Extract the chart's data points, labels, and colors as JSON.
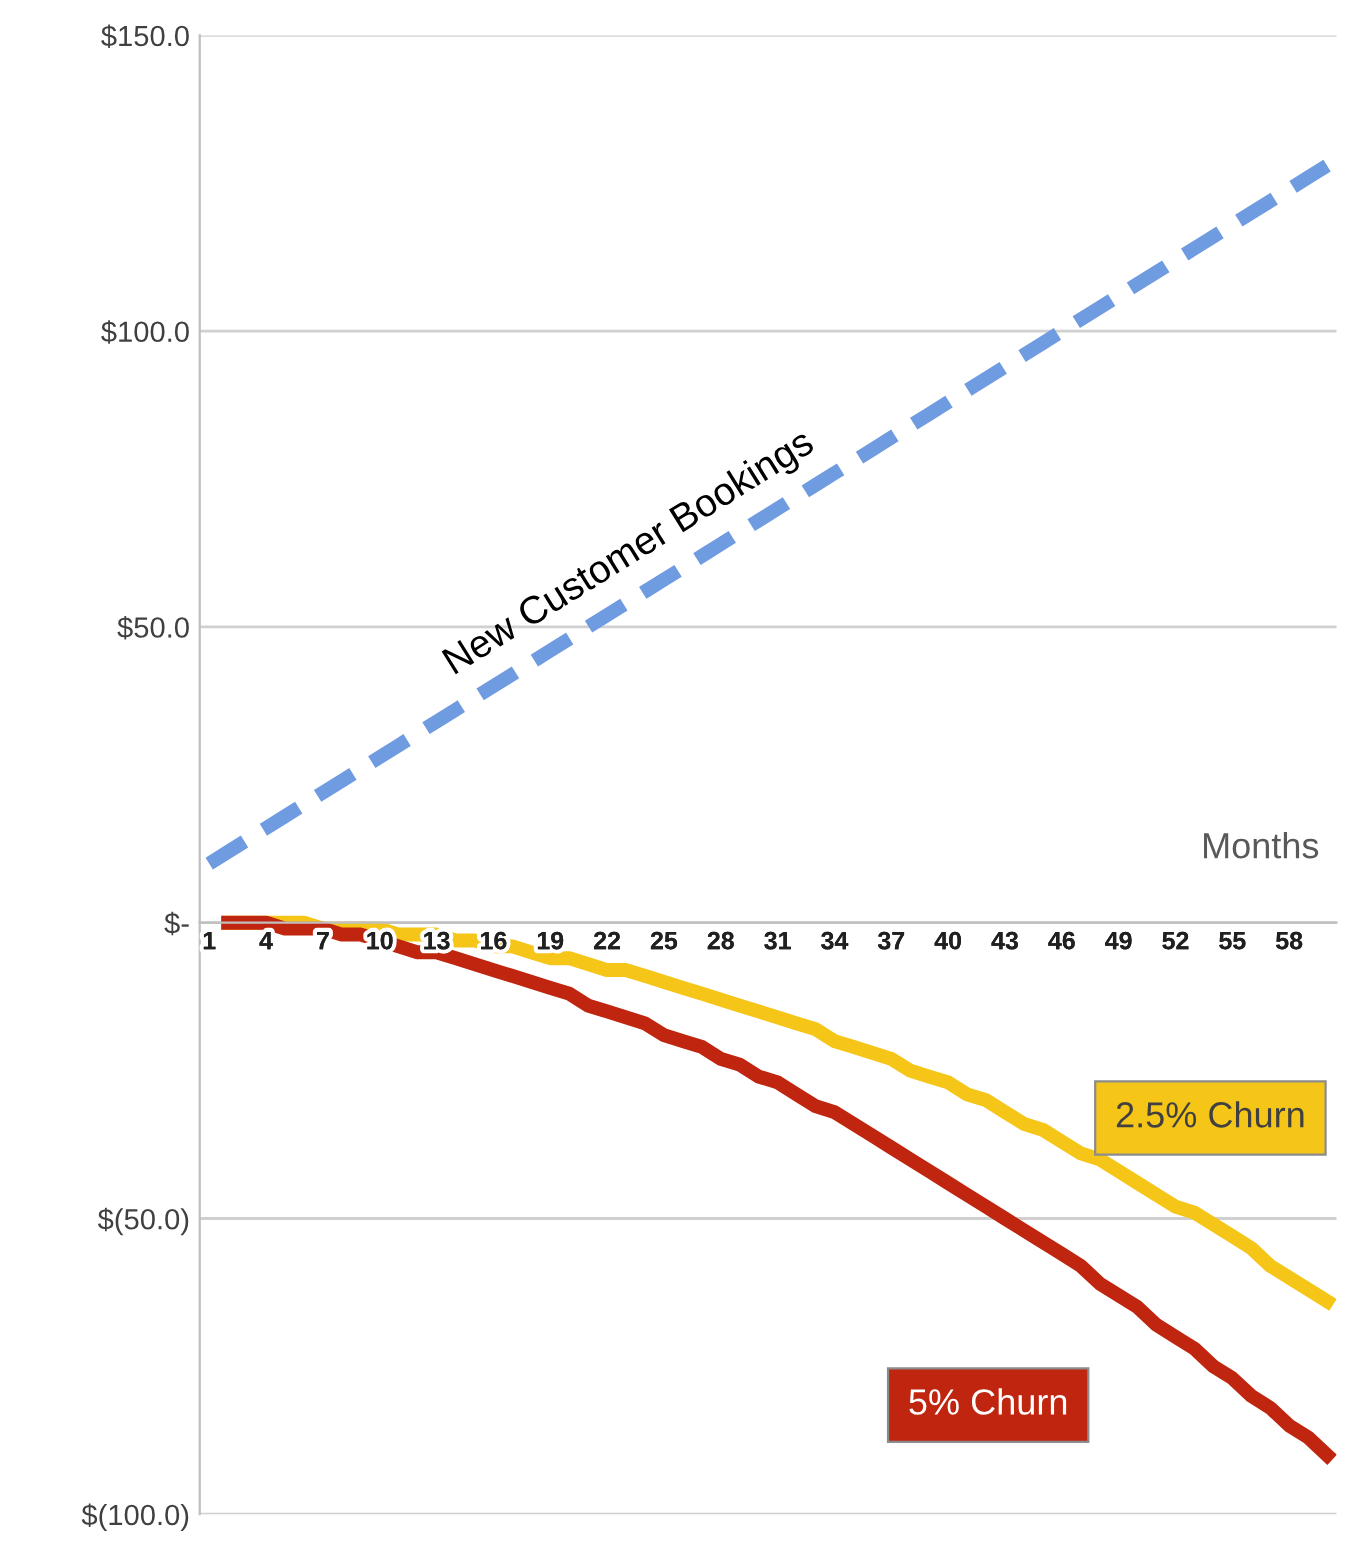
{
  "chart_data": {
    "type": "line",
    "xlabel": "Months",
    "categories": [
      "1",
      null,
      null,
      "4",
      null,
      null,
      "7",
      null,
      null,
      "10",
      null,
      null,
      "13",
      null,
      null,
      "16",
      null,
      null,
      "19",
      null,
      null,
      "22",
      null,
      null,
      "25",
      null,
      null,
      "28",
      null,
      null,
      "31",
      null,
      null,
      "34",
      null,
      null,
      "37",
      null,
      null,
      "40",
      null,
      null,
      "43",
      null,
      null,
      "46",
      null,
      null,
      "49",
      null,
      null,
      "52",
      null,
      null,
      "55",
      null,
      null,
      "58",
      null,
      null
    ],
    "series": [
      {
        "name": "New Customer Bookings",
        "color": "#6f9be0",
        "line_style": "dashed",
        "values": [
          10,
          12,
          14,
          16,
          18,
          20,
          22,
          24,
          26,
          28,
          30,
          32,
          34,
          36,
          38,
          40,
          42,
          44,
          46,
          48,
          50,
          52,
          54,
          56,
          58,
          60,
          62,
          64,
          66,
          68,
          70,
          72,
          74,
          76,
          78,
          80,
          82,
          84,
          86,
          88,
          90,
          92,
          94,
          96,
          98,
          100,
          102,
          104,
          106,
          108,
          110,
          112,
          114,
          116,
          118,
          120,
          122,
          124,
          126,
          128
        ]
      },
      {
        "name": "2.5% Churn",
        "color": "#f5c518",
        "line_style": "solid",
        "values": [
          null,
          0,
          0,
          0,
          0,
          0,
          -1,
          -1,
          -1,
          -1,
          -2,
          -2,
          -2,
          -3,
          -3,
          -4,
          -4,
          -5,
          -6,
          -6,
          -7,
          -8,
          -8,
          -9,
          -10,
          -11,
          -12,
          -13,
          -14,
          -15,
          -16,
          -17,
          -18,
          -20,
          -21,
          -22,
          -23,
          -25,
          -26,
          -27,
          -29,
          -30,
          -32,
          -34,
          -35,
          -37,
          -39,
          -40,
          -42,
          -44,
          -46,
          -48,
          -49,
          -51,
          -53,
          -55,
          -58,
          -60,
          -62,
          -64
        ]
      },
      {
        "name": "5% Churn",
        "color": "#c0250f",
        "line_style": "solid",
        "values": [
          null,
          0,
          0,
          0,
          -1,
          -1,
          -1,
          -2,
          -2,
          -3,
          -4,
          -5,
          -5,
          -6,
          -7,
          -8,
          -9,
          -10,
          -11,
          -12,
          -14,
          -15,
          -16,
          -17,
          -19,
          -20,
          -21,
          -23,
          -24,
          -26,
          -27,
          -29,
          -31,
          -32,
          -34,
          -36,
          -38,
          -40,
          -42,
          -44,
          -46,
          -48,
          -50,
          -52,
          -54,
          -56,
          -58,
          -61,
          -63,
          -65,
          -68,
          -70,
          -72,
          -75,
          -77,
          -80,
          -82,
          -85,
          -87,
          -90
        ]
      }
    ],
    "ylim": [
      -100,
      150
    ],
    "yticks": [
      {
        "value": 150,
        "label": "$150.0"
      },
      {
        "value": 100,
        "label": "$100.0"
      },
      {
        "value": 50,
        "label": "$50.0"
      },
      {
        "value": 0,
        "label": "$-"
      },
      {
        "value": -50,
        "label": "$(50.0)"
      },
      {
        "value": -100,
        "label": "$(100.0)"
      }
    ],
    "grid": "y",
    "legend": false,
    "marker": "none"
  }
}
